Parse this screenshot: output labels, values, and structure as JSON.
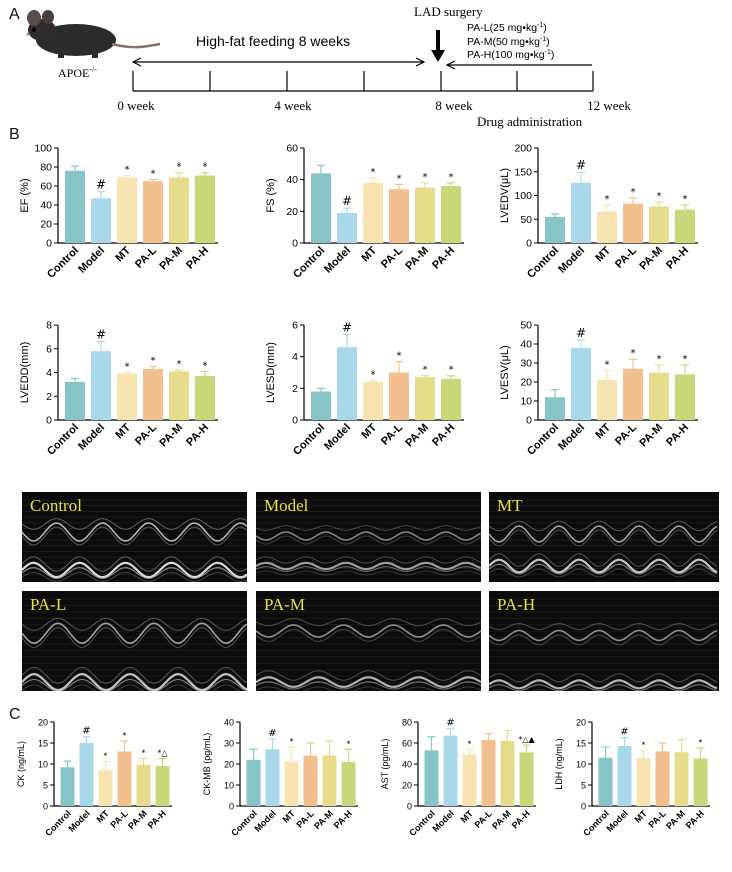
{
  "panels": {
    "a": "A",
    "b": "B",
    "c": "C"
  },
  "timeline": {
    "mouse_label_base": "APOE",
    "mouse_label_sup": "-/-",
    "feeding_label": "High-fat feeding 8 weeks",
    "surgery_label": "LAD surgery",
    "dose_labels": [
      {
        "base": "PA-L(25 mg",
        "sup": "-1",
        "unit": "kg"
      },
      {
        "base": "PA-M(50 mg",
        "sup": "-1",
        "unit": "kg"
      },
      {
        "base": "PA-H(100 mg",
        "sup": "-1",
        "unit": "kg"
      }
    ],
    "week_labels": [
      "0 week",
      "4 week",
      "8 week",
      "12 week"
    ],
    "drug_label": "Drug administration"
  },
  "chart_data": [
    {
      "type": "bar",
      "id": "ef",
      "ylabel": "EF (%)",
      "ylim": [
        0,
        100
      ],
      "ticks": [
        0,
        20,
        40,
        60,
        80,
        100
      ],
      "categories": [
        "Control",
        "Model",
        "MT",
        "PA-L",
        "PA-M",
        "PA-H"
      ],
      "values": [
        76,
        47,
        69,
        65,
        69,
        71
      ],
      "errors": [
        5,
        7,
        2,
        2,
        5,
        3
      ],
      "marks": [
        "",
        "#",
        "*",
        "*",
        "*",
        "*"
      ]
    },
    {
      "type": "bar",
      "id": "fs",
      "ylabel": "FS (%)",
      "ylim": [
        0,
        60
      ],
      "ticks": [
        0,
        20,
        40,
        60
      ],
      "categories": [
        "Control",
        "Model",
        "MT",
        "PA-L",
        "PA-M",
        "PA-H"
      ],
      "values": [
        44,
        19,
        38,
        34,
        35,
        36
      ],
      "errors": [
        5,
        3,
        3,
        3,
        3,
        2
      ],
      "marks": [
        "",
        "#",
        "*",
        "*",
        "*",
        "*"
      ]
    },
    {
      "type": "bar",
      "id": "lvedv",
      "ylabel": "LVEDV(μL)",
      "ylim": [
        0,
        200
      ],
      "ticks": [
        0,
        50,
        100,
        150,
        200
      ],
      "categories": [
        "Control",
        "Model",
        "MT",
        "PA-L",
        "PA-M",
        "PA-H"
      ],
      "values": [
        55,
        127,
        66,
        83,
        77,
        70
      ],
      "errors": [
        6,
        22,
        14,
        12,
        9,
        10
      ],
      "marks": [
        "",
        "#",
        "*",
        "*",
        "*",
        "*"
      ]
    },
    {
      "type": "bar",
      "id": "lvedd",
      "ylabel": "LVEDD(mm)",
      "ylim": [
        0,
        8
      ],
      "ticks": [
        0,
        2,
        4,
        6,
        8
      ],
      "categories": [
        "Control",
        "Model",
        "MT",
        "PA-L",
        "PA-M",
        "PA-H"
      ],
      "values": [
        3.2,
        5.8,
        3.9,
        4.3,
        4.1,
        3.7
      ],
      "errors": [
        0.3,
        0.8,
        0.1,
        0.2,
        0.1,
        0.4
      ],
      "marks": [
        "",
        "#",
        "*",
        "*",
        "*",
        "*"
      ]
    },
    {
      "type": "bar",
      "id": "lvesd",
      "ylabel": "LVESD(mm)",
      "ylim": [
        0,
        6
      ],
      "ticks": [
        0,
        2,
        4,
        6
      ],
      "categories": [
        "Control",
        "Model",
        "MT",
        "PA-L",
        "PA-M",
        "PA-H"
      ],
      "values": [
        1.8,
        4.6,
        2.4,
        3.0,
        2.7,
        2.6
      ],
      "errors": [
        0.2,
        0.8,
        0.1,
        0.7,
        0.1,
        0.2
      ],
      "marks": [
        "",
        "#",
        "*",
        "*",
        "*",
        "*"
      ]
    },
    {
      "type": "bar",
      "id": "lvesv",
      "ylabel": "LVESV(μL)",
      "ylim": [
        0,
        50
      ],
      "ticks": [
        0,
        10,
        20,
        30,
        40,
        50
      ],
      "categories": [
        "Control",
        "Model",
        "MT",
        "PA-L",
        "PA-M",
        "PA-H"
      ],
      "values": [
        12,
        38,
        21,
        27,
        25,
        24
      ],
      "errors": [
        4,
        4,
        5,
        5,
        4,
        5
      ],
      "marks": [
        "",
        "#",
        "*",
        "*",
        "*",
        "*"
      ]
    },
    {
      "type": "bar",
      "id": "ck",
      "ylabel": "CK (ng/mL)",
      "ylim": [
        0,
        20
      ],
      "ticks": [
        0,
        5,
        10,
        15,
        20
      ],
      "categories": [
        "Control",
        "Model",
        "MT",
        "PA-L",
        "PA-M",
        "PA-H"
      ],
      "values": [
        9.2,
        15,
        8.6,
        13,
        9.8,
        9.5
      ],
      "errors": [
        1.5,
        1.5,
        2,
        2.5,
        1.5,
        1.8
      ],
      "marks": [
        "",
        "#",
        "*",
        "*",
        "*",
        "*△"
      ]
    },
    {
      "type": "bar",
      "id": "ckmb",
      "ylabel": "CK-MB (pg/mL)",
      "ylim": [
        0,
        40
      ],
      "ticks": [
        0,
        10,
        20,
        30,
        40
      ],
      "categories": [
        "Control",
        "Model",
        "MT",
        "PA-L",
        "PA-M",
        "PA-H"
      ],
      "values": [
        22,
        27,
        21,
        24,
        24,
        21
      ],
      "errors": [
        5,
        5,
        7,
        6,
        7,
        6
      ],
      "marks": [
        "",
        "#",
        "*",
        "",
        "",
        "*"
      ]
    },
    {
      "type": "bar",
      "id": "ast",
      "ylabel": "AST (pg/mL)",
      "ylim": [
        0,
        80
      ],
      "ticks": [
        0,
        20,
        40,
        60,
        80
      ],
      "categories": [
        "Control",
        "Model",
        "MT",
        "PA-L",
        "PA-M",
        "PA-H"
      ],
      "values": [
        53,
        67,
        49,
        63,
        62,
        51
      ],
      "errors": [
        13,
        7,
        5,
        6,
        10,
        7
      ],
      "marks": [
        "",
        "#",
        "*",
        "",
        "",
        "*△▲"
      ]
    },
    {
      "type": "bar",
      "id": "ldh",
      "ylabel": "LDH (ng/mL)",
      "ylim": [
        0,
        20
      ],
      "ticks": [
        0,
        5,
        10,
        15,
        20
      ],
      "categories": [
        "Control",
        "Model",
        "MT",
        "PA-L",
        "PA-M",
        "PA-H"
      ],
      "values": [
        11.5,
        14.3,
        11.4,
        13,
        12.8,
        11.3
      ],
      "errors": [
        2.5,
        2,
        1.8,
        2,
        3,
        2.5
      ],
      "marks": [
        "",
        "#",
        "*",
        "",
        "",
        "*"
      ]
    }
  ],
  "colors": [
    "#87c4c7",
    "#a9d8ea",
    "#f6e3b0",
    "#f2c08e",
    "#e6dc8c",
    "#c8d779"
  ],
  "echo": [
    {
      "label": "Control",
      "profile": "control"
    },
    {
      "label": "Model",
      "profile": "model"
    },
    {
      "label": "MT",
      "profile": "mt"
    },
    {
      "label": "PA-L",
      "profile": "pal"
    },
    {
      "label": "PA-M",
      "profile": "pam"
    },
    {
      "label": "PA-H",
      "profile": "pah"
    }
  ]
}
